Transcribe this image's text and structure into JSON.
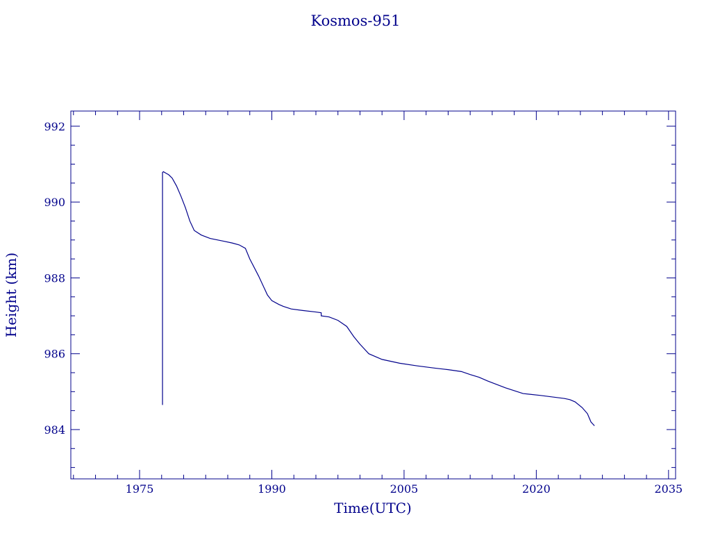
{
  "chart_data": {
    "type": "line",
    "title": "Kosmos-951",
    "xlabel": "Time(UTC)",
    "ylabel": "Height (km)",
    "xlim": [
      1967.2,
      2035.8
    ],
    "ylim": [
      982.7,
      992.4
    ],
    "x_ticks": [
      1975,
      1990,
      2005,
      2020,
      2035
    ],
    "y_ticks": [
      984,
      986,
      988,
      990,
      992
    ],
    "x_minor_step": 2.5,
    "y_minor_step": 0.5,
    "color": "#00008b",
    "grid": false,
    "series": [
      {
        "x": [
          1977.6,
          1977.6,
          1977.7,
          1978.0,
          1978.3,
          1978.7,
          1979.2,
          1979.7,
          1980.2,
          1980.7,
          1981.2,
          1982.0,
          1983.0,
          1984.5,
          1985.5,
          1986.3,
          1987.0,
          1987.5,
          1988.5,
          1989.5,
          1990.0,
          1990.8,
          1991.3,
          1992.2,
          1993.5,
          1995.0,
          1995.6,
          1995.6,
          1996.5,
          1997.5,
          1998.5,
          1999.3,
          2000.0,
          2001.0,
          2002.5,
          2004.5,
          2006.5,
          2008.5,
          2010.0,
          2011.5,
          2012.5,
          2013.5,
          2014.5,
          2016.5,
          2018.5,
          2020.5,
          2021.5,
          2022.5,
          2023.2,
          2023.8,
          2024.4,
          2025.2,
          2025.8,
          2026.2,
          2026.6
        ],
        "y": [
          984.65,
          990.78,
          990.8,
          990.76,
          990.72,
          990.63,
          990.42,
          990.15,
          989.85,
          989.5,
          989.25,
          989.13,
          989.04,
          988.97,
          988.92,
          988.87,
          988.78,
          988.5,
          988.05,
          987.55,
          987.4,
          987.3,
          987.25,
          987.18,
          987.14,
          987.1,
          987.08,
          987.0,
          986.97,
          986.88,
          986.72,
          986.45,
          986.25,
          986.0,
          985.85,
          985.75,
          985.68,
          985.62,
          985.58,
          985.53,
          985.45,
          985.38,
          985.28,
          985.1,
          984.95,
          984.9,
          984.87,
          984.84,
          984.82,
          984.79,
          984.73,
          984.58,
          984.42,
          984.2,
          984.1
        ]
      }
    ]
  }
}
